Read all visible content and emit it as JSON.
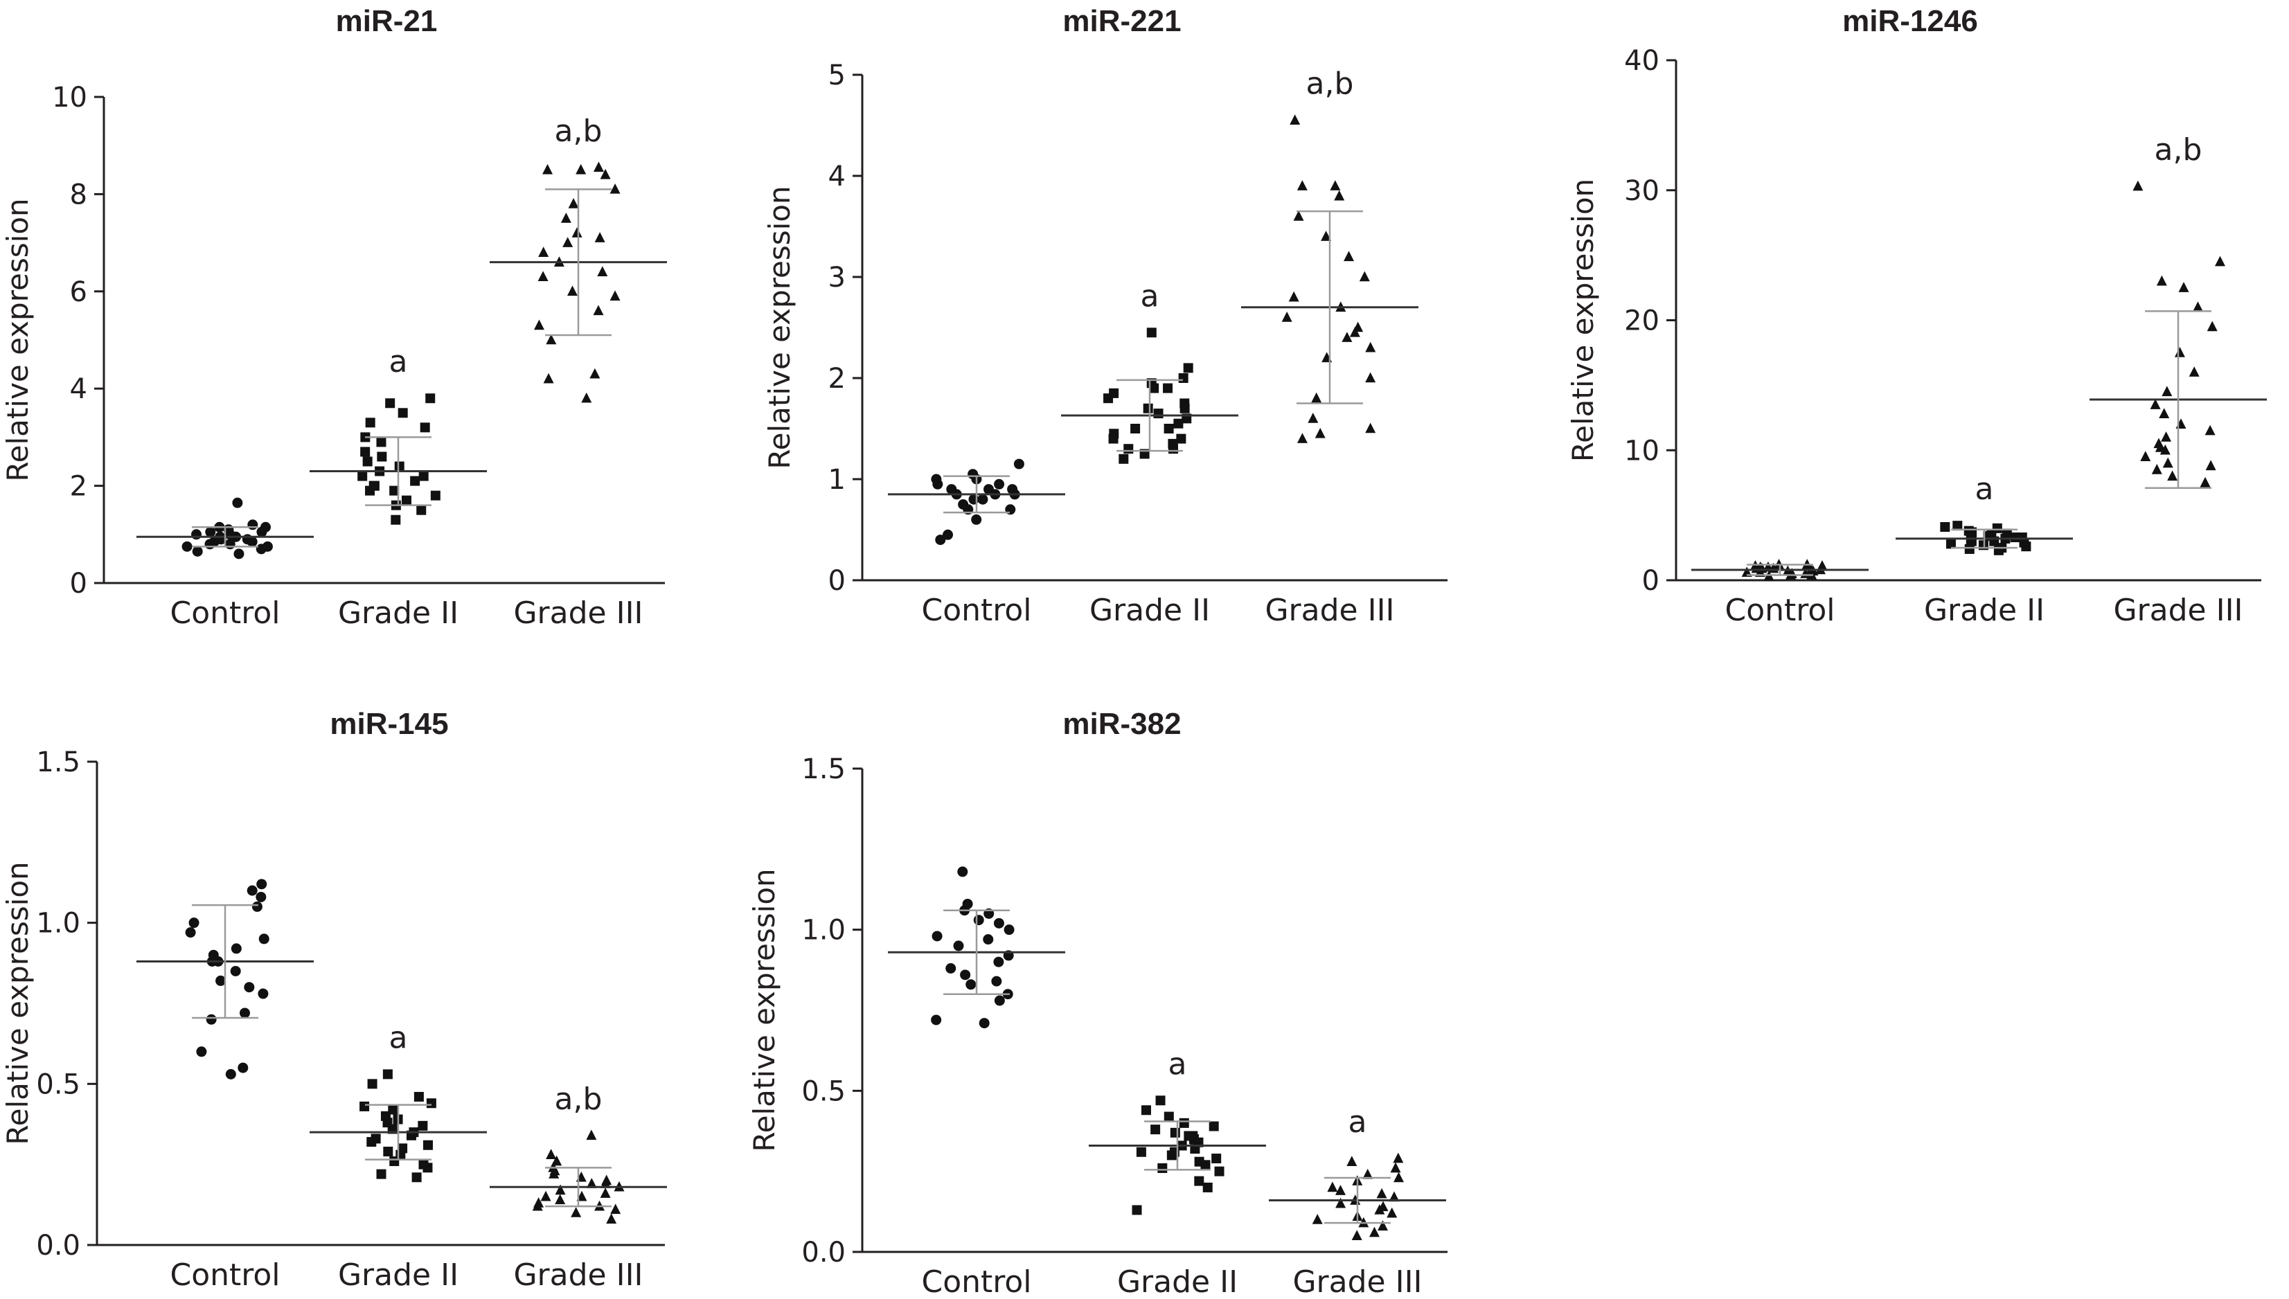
{
  "chart_data": [
    {
      "type": "scatter",
      "title": "miR-21",
      "ylabel": "Relative expression",
      "ylim": [
        0,
        10
      ],
      "yticks": [
        "0",
        "2",
        "4",
        "6",
        "8",
        "10"
      ],
      "categories": [
        "Control",
        "Grade II",
        "Grade III"
      ],
      "annotations": [
        "",
        "a",
        "a,b"
      ],
      "markers": [
        "circle",
        "square",
        "triangle"
      ],
      "groups": [
        {
          "mean": 0.95,
          "sd": 0.2,
          "values": [
            0.7,
            0.75,
            0.8,
            0.85,
            0.9,
            0.95,
            1.0,
            1.05,
            1.1,
            1.15,
            1.2,
            0.65,
            0.75,
            0.85,
            0.95,
            1.05,
            1.15,
            1.65,
            0.8,
            0.9,
            1.0,
            0.6
          ]
        },
        {
          "mean": 2.3,
          "sd": 0.7,
          "values": [
            1.3,
            1.5,
            1.7,
            1.8,
            1.9,
            2.0,
            2.1,
            2.2,
            2.3,
            2.4,
            2.5,
            2.7,
            2.9,
            3.0,
            3.2,
            3.5,
            3.7,
            3.8,
            1.6,
            2.0,
            2.6,
            3.3,
            1.9,
            2.2
          ]
        },
        {
          "mean": 6.6,
          "sd": 1.5,
          "values": [
            3.8,
            4.2,
            4.3,
            5.0,
            5.3,
            5.6,
            6.0,
            6.3,
            6.6,
            6.8,
            7.0,
            7.2,
            7.5,
            7.8,
            8.1,
            8.4,
            8.5,
            8.5,
            8.55,
            6.4,
            7.1,
            5.9
          ]
        }
      ]
    },
    {
      "type": "scatter",
      "title": "miR-221",
      "ylabel": "Relative expression",
      "ylim": [
        0,
        5
      ],
      "yticks": [
        "0",
        "1",
        "2",
        "3",
        "4",
        "5"
      ],
      "categories": [
        "Control",
        "Grade II",
        "Grade III"
      ],
      "annotations": [
        "",
        "a",
        "a,b"
      ],
      "markers": [
        "circle",
        "square",
        "triangle"
      ],
      "groups": [
        {
          "mean": 0.85,
          "sd": 0.18,
          "values": [
            0.4,
            0.45,
            0.6,
            0.7,
            0.75,
            0.8,
            0.85,
            0.85,
            0.9,
            0.9,
            0.95,
            1.0,
            1.0,
            1.05,
            0.8,
            0.9,
            0.7,
            1.15,
            0.85,
            0.95
          ]
        },
        {
          "mean": 1.63,
          "sd": 0.35,
          "values": [
            1.2,
            1.25,
            1.3,
            1.35,
            1.4,
            1.45,
            1.5,
            1.55,
            1.6,
            1.65,
            1.7,
            1.75,
            1.8,
            1.85,
            1.9,
            1.95,
            2.0,
            2.1,
            2.45,
            1.3,
            1.5,
            1.7,
            1.9,
            1.4
          ]
        },
        {
          "mean": 2.7,
          "sd": 0.95,
          "values": [
            1.4,
            1.45,
            1.5,
            1.8,
            2.0,
            2.2,
            2.4,
            2.5,
            2.6,
            2.8,
            3.0,
            3.2,
            3.4,
            3.6,
            3.8,
            3.9,
            3.9,
            4.55,
            2.3,
            2.7,
            1.6,
            2.45
          ]
        }
      ]
    },
    {
      "type": "scatter",
      "title": "miR-1246",
      "ylabel": "Relative expression",
      "ylim": [
        0,
        40
      ],
      "yticks": [
        "0",
        "10",
        "20",
        "30",
        "40"
      ],
      "categories": [
        "Control",
        "Grade II",
        "Grade III"
      ],
      "annotations": [
        "",
        "a",
        "a,b"
      ],
      "markers": [
        "triangle",
        "square",
        "triangle"
      ],
      "groups": [
        {
          "mean": 0.8,
          "sd": 0.4,
          "values": [
            0.3,
            0.4,
            0.5,
            0.6,
            0.7,
            0.8,
            0.9,
            1.0,
            1.1,
            1.2,
            0.5,
            0.7,
            0.9,
            1.1,
            0.6,
            0.8,
            1.0,
            0.4,
            1.2,
            0.9
          ]
        },
        {
          "mean": 3.2,
          "sd": 0.7,
          "values": [
            2.3,
            2.5,
            2.7,
            2.8,
            3.0,
            3.1,
            3.2,
            3.3,
            3.4,
            3.5,
            3.6,
            3.8,
            4.0,
            4.1,
            2.6,
            2.9,
            3.3,
            3.7,
            4.2,
            2.4,
            3.0
          ]
        },
        {
          "mean": 13.9,
          "sd": 6.8,
          "values": [
            7.5,
            8.0,
            8.5,
            9.0,
            9.5,
            10.0,
            10.5,
            11.0,
            11.5,
            12.0,
            12.8,
            13.5,
            14.5,
            16.0,
            17.5,
            19.5,
            21.0,
            22.5,
            23.0,
            24.5,
            30.3,
            10.2,
            8.8
          ]
        }
      ]
    },
    {
      "type": "scatter",
      "title": "miR-145",
      "ylabel": "Relative expression",
      "ylim": [
        0,
        1.5
      ],
      "yticks": [
        "0.0",
        "0.5",
        "1.0",
        "1.5"
      ],
      "categories": [
        "Control",
        "Grade II",
        "Grade III"
      ],
      "annotations": [
        "",
        "a",
        "a,b"
      ],
      "markers": [
        "circle",
        "square",
        "triangle"
      ],
      "groups": [
        {
          "mean": 0.88,
          "sd": 0.175,
          "values": [
            0.53,
            0.55,
            0.6,
            0.7,
            0.72,
            0.78,
            0.82,
            0.85,
            0.88,
            0.9,
            0.92,
            0.95,
            0.97,
            1.0,
            1.05,
            1.08,
            1.1,
            1.12,
            0.8,
            0.88
          ]
        },
        {
          "mean": 0.35,
          "sd": 0.085,
          "values": [
            0.21,
            0.22,
            0.24,
            0.26,
            0.28,
            0.3,
            0.32,
            0.33,
            0.34,
            0.35,
            0.36,
            0.37,
            0.38,
            0.4,
            0.42,
            0.44,
            0.46,
            0.5,
            0.53,
            0.29,
            0.31,
            0.39,
            0.43,
            0.25
          ]
        },
        {
          "mean": 0.18,
          "sd": 0.06,
          "values": [
            0.08,
            0.1,
            0.11,
            0.12,
            0.13,
            0.14,
            0.15,
            0.16,
            0.17,
            0.18,
            0.19,
            0.2,
            0.21,
            0.22,
            0.23,
            0.24,
            0.26,
            0.28,
            0.34,
            0.15,
            0.19,
            0.12
          ]
        }
      ]
    },
    {
      "type": "scatter",
      "title": "miR-382",
      "ylabel": "Relative expression",
      "ylim": [
        0,
        1.5
      ],
      "yticks": [
        "0.0",
        "0.5",
        "1.0",
        "1.5"
      ],
      "categories": [
        "Control",
        "Grade II",
        "Grade III"
      ],
      "annotations": [
        "",
        "a",
        "a"
      ],
      "markers": [
        "circle",
        "square",
        "triangle"
      ],
      "groups": [
        {
          "mean": 0.93,
          "sd": 0.13,
          "values": [
            0.71,
            0.72,
            0.78,
            0.8,
            0.83,
            0.86,
            0.88,
            0.9,
            0.92,
            0.95,
            0.97,
            1.0,
            1.02,
            1.03,
            1.05,
            1.06,
            1.08,
            1.18,
            0.84,
            0.98
          ]
        },
        {
          "mean": 0.33,
          "sd": 0.075,
          "values": [
            0.13,
            0.2,
            0.22,
            0.25,
            0.27,
            0.28,
            0.3,
            0.31,
            0.32,
            0.33,
            0.34,
            0.35,
            0.36,
            0.37,
            0.38,
            0.4,
            0.42,
            0.44,
            0.47,
            0.29,
            0.31,
            0.36,
            0.39,
            0.26
          ]
        },
        {
          "mean": 0.16,
          "sd": 0.07,
          "values": [
            0.05,
            0.06,
            0.08,
            0.1,
            0.11,
            0.12,
            0.13,
            0.14,
            0.15,
            0.16,
            0.17,
            0.18,
            0.2,
            0.22,
            0.24,
            0.26,
            0.28,
            0.29,
            0.09,
            0.19,
            0.23
          ]
        }
      ]
    }
  ]
}
